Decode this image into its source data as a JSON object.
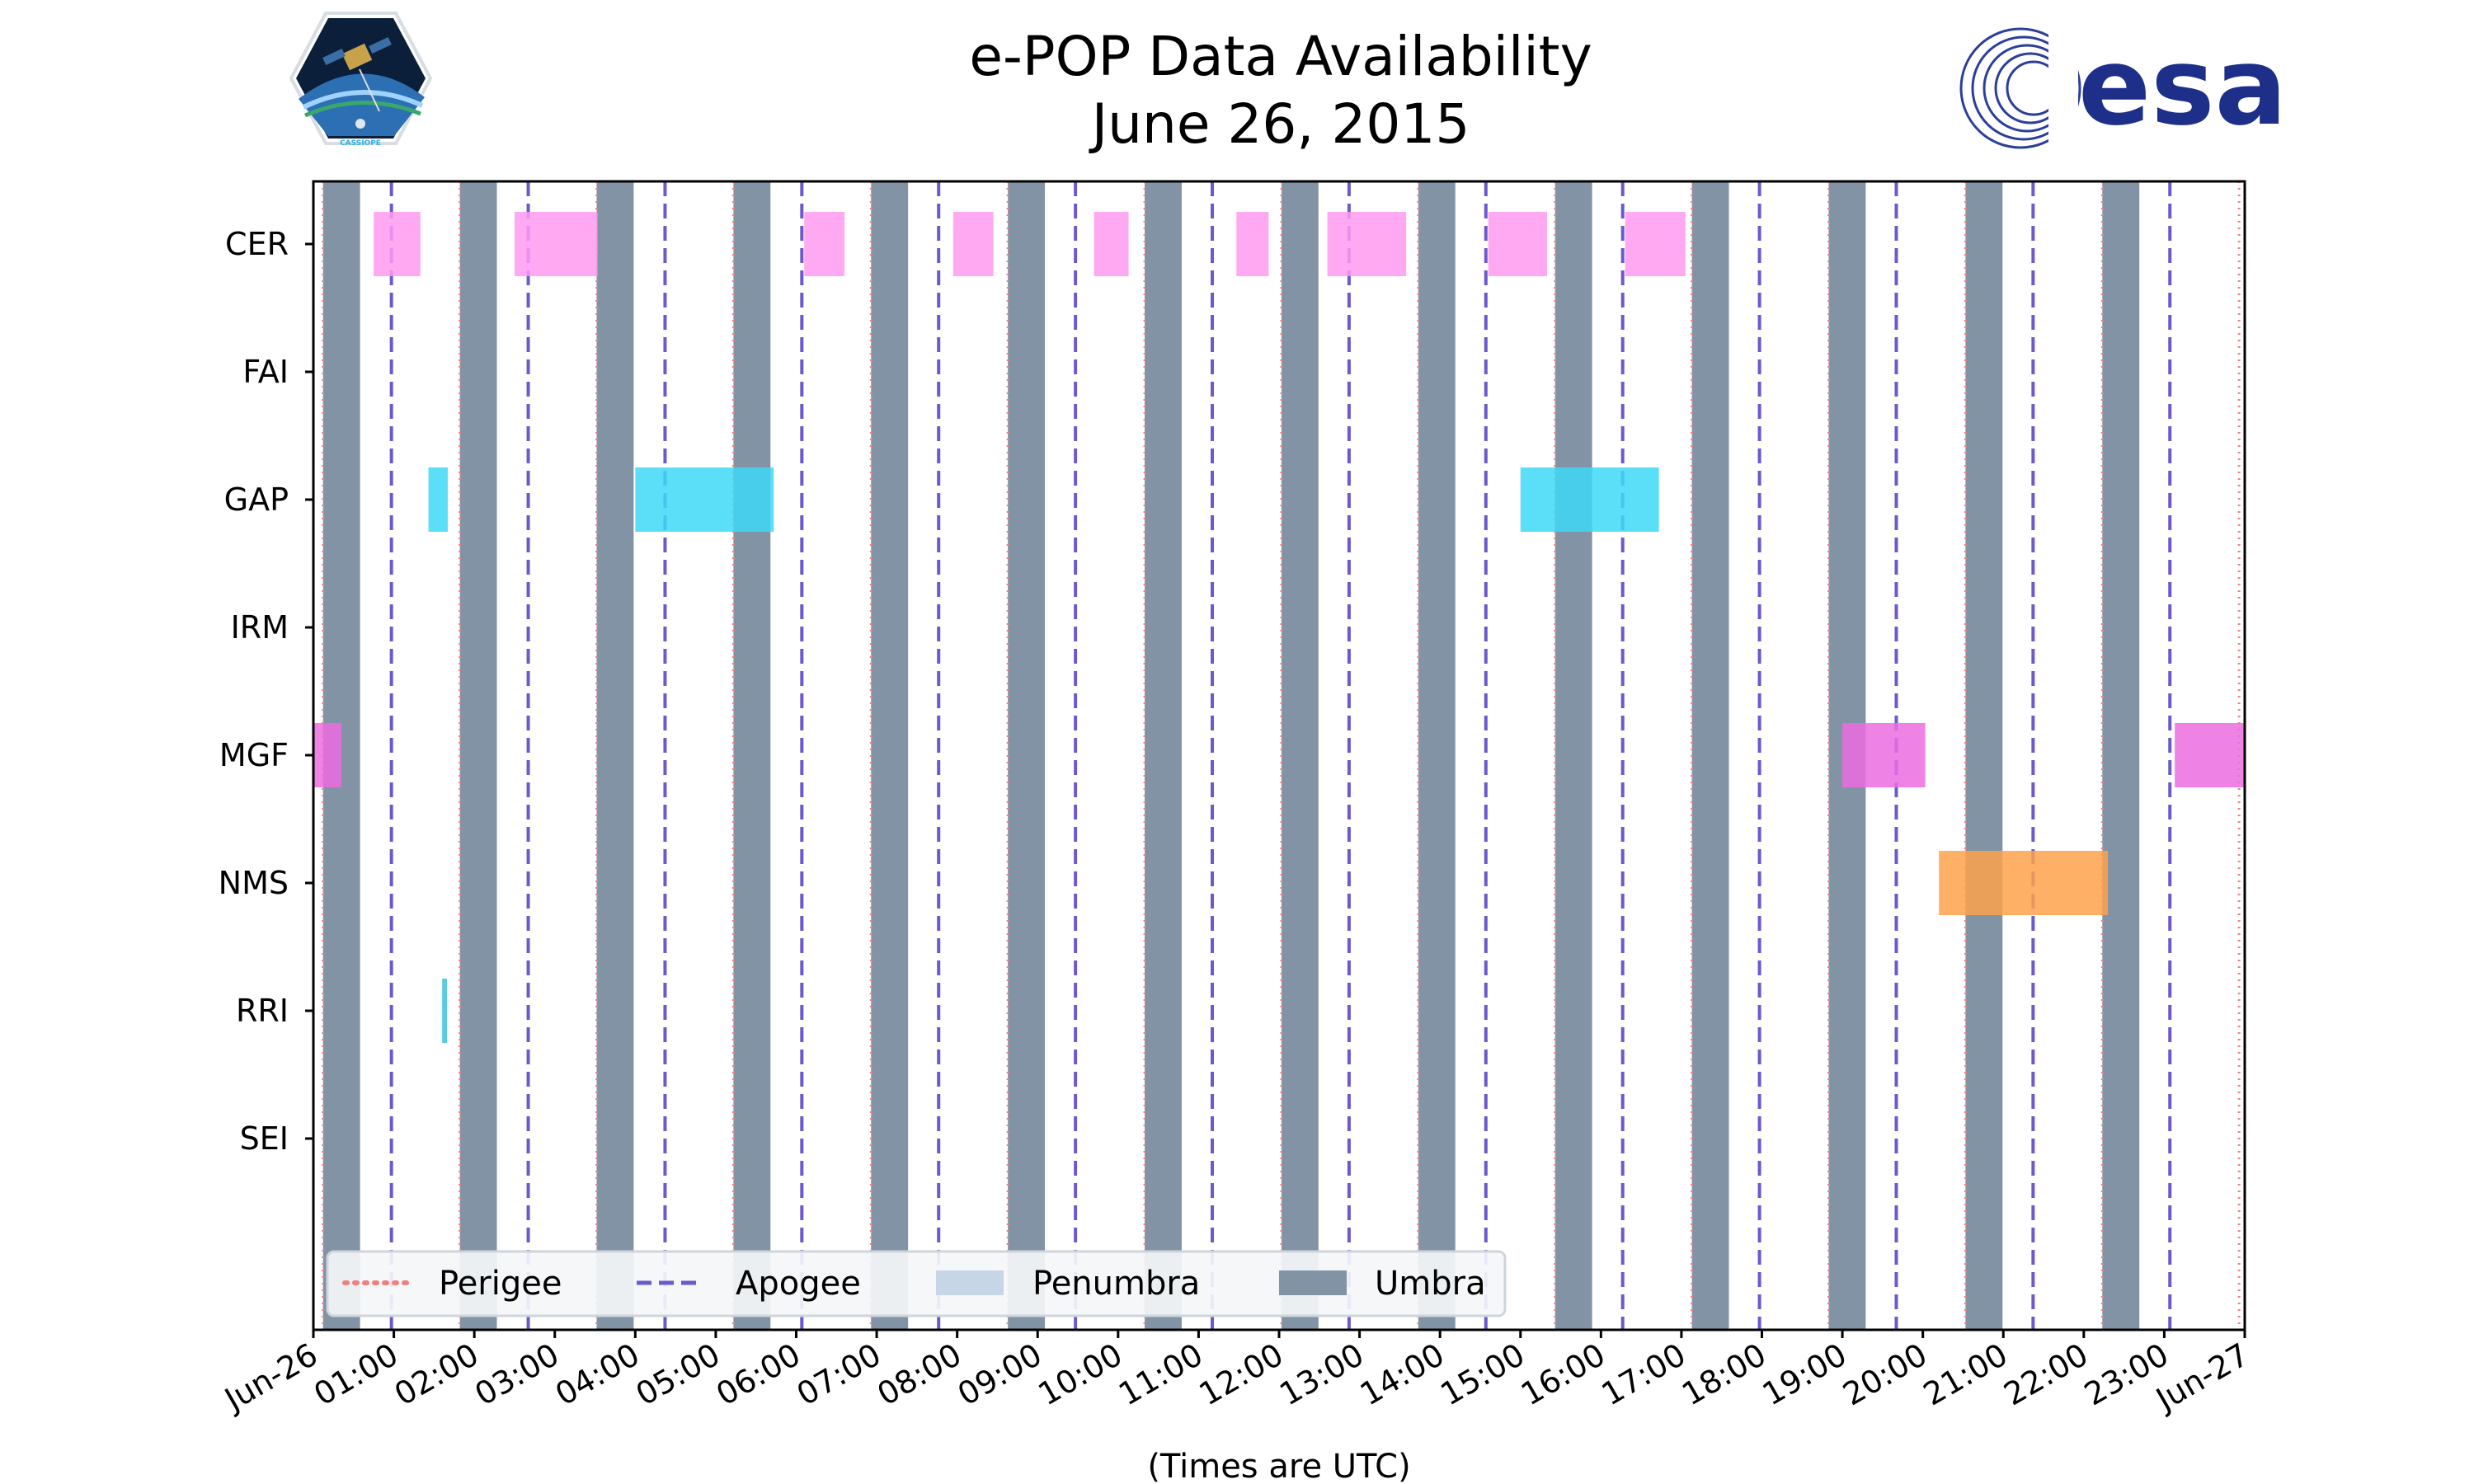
{
  "title_line1": "e-POP Data Availability",
  "title_line2": "June 26, 2015",
  "logos": {
    "left_caption": "CASSIOPE",
    "right_text": "esa"
  },
  "colors": {
    "umbra": "#8193a5",
    "penumbra": "#c7d6e6",
    "perigee": "#f08080",
    "apogee": "#6a5acd",
    "CER": "#ff9af0",
    "GAP": "#3ed8f6",
    "MGF": "#ec6ce0",
    "NMS": "#fea24c",
    "RRI": "#3cc3e0"
  },
  "chart_data": {
    "type": "timeline",
    "title": "e-POP Data Availability\nJune 26, 2015",
    "xlabel": "(Times are UTC)",
    "ylabel": "",
    "xlim_hours": [
      0,
      24
    ],
    "x_tick_labels": [
      "Jun-26",
      "01:00",
      "02:00",
      "03:00",
      "04:00",
      "05:00",
      "06:00",
      "07:00",
      "08:00",
      "09:00",
      "10:00",
      "11:00",
      "12:00",
      "13:00",
      "14:00",
      "15:00",
      "16:00",
      "17:00",
      "18:00",
      "19:00",
      "20:00",
      "21:00",
      "22:00",
      "23:00",
      "Jun-27"
    ],
    "instruments": [
      "CER",
      "FAI",
      "GAP",
      "IRM",
      "MGF",
      "NMS",
      "RRI",
      "SEI"
    ],
    "legend": {
      "placement": "lower-left",
      "entries": [
        "Perigee",
        "Apogee",
        "Penumbra",
        "Umbra"
      ]
    },
    "perigee_hours": [
      0.12,
      1.82,
      3.52,
      5.22,
      6.93,
      8.63,
      10.33,
      12.03,
      13.73,
      15.43,
      17.13,
      18.83,
      20.53,
      22.23,
      23.93
    ],
    "apogee_hours": [
      0.97,
      2.67,
      4.37,
      6.07,
      7.77,
      9.47,
      11.17,
      12.87,
      14.57,
      16.27,
      17.97,
      19.67,
      21.37,
      23.07
    ],
    "umbra_intervals": [
      [
        0.12,
        0.58
      ],
      [
        1.82,
        2.28
      ],
      [
        3.52,
        3.98
      ],
      [
        5.22,
        5.68
      ],
      [
        6.93,
        7.39
      ],
      [
        8.63,
        9.09
      ],
      [
        10.33,
        10.79
      ],
      [
        12.03,
        12.49
      ],
      [
        13.73,
        14.19
      ],
      [
        15.43,
        15.89
      ],
      [
        17.13,
        17.59
      ],
      [
        18.83,
        19.29
      ],
      [
        20.53,
        20.99
      ],
      [
        22.23,
        22.69
      ]
    ],
    "availability": [
      {
        "instrument": "CER",
        "intervals": [
          [
            0.75,
            1.33
          ],
          [
            2.5,
            3.53
          ],
          [
            6.1,
            6.6
          ],
          [
            7.95,
            8.45
          ],
          [
            9.7,
            10.13
          ],
          [
            11.47,
            11.87
          ],
          [
            12.6,
            13.58
          ],
          [
            14.6,
            15.33
          ],
          [
            16.3,
            17.05
          ]
        ]
      },
      {
        "instrument": "FAI",
        "intervals": []
      },
      {
        "instrument": "GAP",
        "intervals": [
          [
            1.43,
            1.67
          ],
          [
            4.0,
            5.72
          ],
          [
            15.0,
            16.72
          ]
        ]
      },
      {
        "instrument": "IRM",
        "intervals": []
      },
      {
        "instrument": "MGF",
        "intervals": [
          [
            0.0,
            0.35
          ],
          [
            19.0,
            20.03
          ],
          [
            23.13,
            24.0
          ]
        ]
      },
      {
        "instrument": "NMS",
        "intervals": [
          [
            20.2,
            22.3
          ]
        ]
      },
      {
        "instrument": "RRI",
        "intervals": [
          [
            1.6,
            1.66
          ]
        ]
      },
      {
        "instrument": "SEI",
        "intervals": []
      }
    ]
  }
}
